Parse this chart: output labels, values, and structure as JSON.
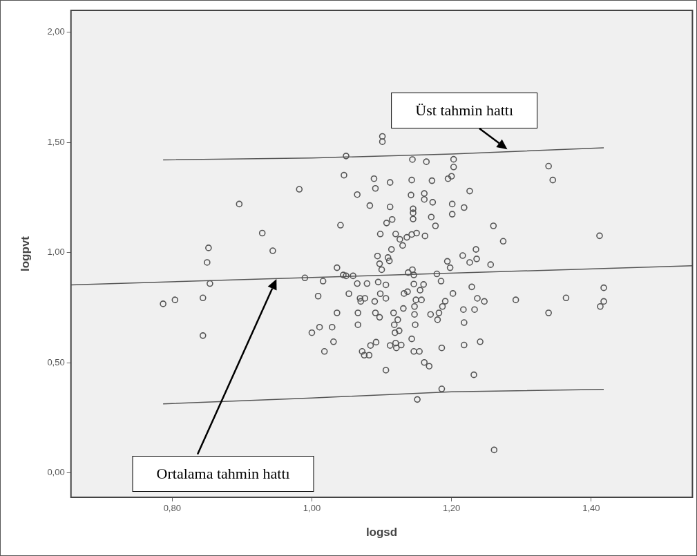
{
  "chart_data": {
    "type": "scatter",
    "xlabel": "logsd",
    "ylabel": "logpvt",
    "xlim": [
      0.655,
      1.545
    ],
    "ylim": [
      -0.11,
      2.1
    ],
    "xticks": [
      {
        "value": 0.8,
        "label": "0,80"
      },
      {
        "value": 1.0,
        "label": "1,00"
      },
      {
        "value": 1.2,
        "label": "1,20"
      },
      {
        "value": 1.4,
        "label": "1,40"
      }
    ],
    "yticks": [
      {
        "value": 0,
        "label": "0,00"
      },
      {
        "value": 0.5,
        "label": "0,50"
      },
      {
        "value": 1.0,
        "label": "1,00"
      },
      {
        "value": 1.5,
        "label": "1,50"
      },
      {
        "value": 2.0,
        "label": "2,00"
      }
    ],
    "grid": false,
    "legend": false,
    "marker": "circle",
    "series": [
      {
        "color": "#555555",
        "x": [
          0.787,
          0.804,
          0.844,
          0.844,
          0.852,
          0.85,
          0.854,
          0.896,
          0.929,
          0.944,
          0.982,
          0.99,
          1.0,
          1.009,
          1.011,
          1.016,
          1.018,
          1.029,
          1.031,
          1.036,
          1.036,
          1.041,
          1.045,
          1.046,
          1.049,
          1.049,
          1.053,
          1.059,
          1.065,
          1.065,
          1.066,
          1.066,
          1.069,
          1.07,
          1.072,
          1.075,
          1.076,
          1.079,
          1.082,
          1.083,
          1.084,
          1.089,
          1.09,
          1.091,
          1.091,
          1.092,
          1.094,
          1.095,
          1.097,
          1.098,
          1.098,
          1.097,
          1.1,
          1.101,
          1.101,
          1.106,
          1.106,
          1.106,
          1.107,
          1.109,
          1.111,
          1.112,
          1.112,
          1.114,
          1.112,
          1.115,
          1.117,
          1.118,
          1.119,
          1.12,
          1.12,
          1.121,
          1.123,
          1.125,
          1.126,
          1.128,
          1.13,
          1.131,
          1.132,
          1.136,
          1.137,
          1.138,
          1.142,
          1.143,
          1.143,
          1.143,
          1.144,
          1.144,
          1.145,
          1.145,
          1.145,
          1.146,
          1.146,
          1.147,
          1.147,
          1.148,
          1.149,
          1.146,
          1.15,
          1.151,
          1.154,
          1.155,
          1.157,
          1.16,
          1.161,
          1.161,
          1.161,
          1.162,
          1.164,
          1.168,
          1.17,
          1.171,
          1.172,
          1.173,
          1.177,
          1.179,
          1.18,
          1.182,
          1.185,
          1.186,
          1.186,
          1.187,
          1.191,
          1.194,
          1.195,
          1.198,
          1.2,
          1.201,
          1.201,
          1.202,
          1.203,
          1.203,
          1.216,
          1.217,
          1.218,
          1.218,
          1.218,
          1.226,
          1.226,
          1.229,
          1.232,
          1.233,
          1.235,
          1.236,
          1.237,
          1.241,
          1.247,
          1.256,
          1.26,
          1.261,
          1.274,
          1.292,
          1.339,
          1.345,
          1.339,
          1.364,
          1.412,
          1.418,
          1.418,
          1.413
        ],
        "values": [
          0.768,
          0.786,
          0.795,
          0.624,
          1.022,
          0.956,
          0.86,
          1.221,
          1.089,
          1.009,
          1.288,
          0.886,
          0.637,
          0.803,
          0.662,
          0.871,
          0.552,
          0.662,
          0.596,
          0.727,
          0.932,
          1.125,
          0.899,
          1.352,
          1.439,
          0.895,
          0.814,
          0.895,
          1.264,
          0.86,
          0.727,
          0.673,
          0.793,
          0.779,
          0.552,
          0.535,
          0.793,
          0.86,
          0.535,
          1.214,
          0.579,
          1.336,
          0.779,
          1.292,
          0.727,
          0.594,
          0.985,
          0.867,
          0.707,
          1.085,
          0.814,
          0.95,
          0.923,
          1.528,
          1.504,
          0.854,
          0.467,
          0.793,
          1.135,
          0.978,
          0.963,
          1.319,
          1.208,
          1.015,
          0.579,
          1.151,
          0.727,
          0.673,
          0.637,
          1.085,
          0.59,
          0.568,
          0.696,
          0.646,
          1.061,
          0.581,
          1.033,
          0.747,
          0.815,
          1.07,
          0.823,
          0.91,
          1.262,
          1.083,
          1.33,
          0.609,
          1.423,
          0.923,
          1.199,
          1.181,
          1.153,
          0.899,
          0.858,
          0.72,
          0.756,
          0.673,
          0.786,
          0.552,
          1.089,
          0.334,
          0.552,
          0.83,
          0.786,
          0.856,
          0.502,
          1.269,
          1.242,
          1.076,
          1.413,
          0.485,
          0.72,
          1.162,
          1.327,
          1.229,
          1.122,
          0.904,
          0.696,
          0.727,
          0.871,
          0.568,
          0.382,
          0.756,
          0.78,
          0.961,
          1.336,
          0.932,
          1.347,
          1.221,
          1.175,
          0.815,
          1.424,
          1.389,
          0.987,
          0.742,
          0.683,
          1.205,
          0.581,
          0.956,
          1.28,
          0.845,
          0.446,
          0.742,
          1.015,
          0.972,
          0.793,
          0.596,
          0.779,
          0.946,
          1.122,
          0.105,
          1.052,
          0.786,
          1.393,
          1.33,
          0.727,
          0.795,
          1.077,
          0.841,
          0.779,
          0.756
        ]
      },
      {
        "type": "line",
        "color": "#555555",
        "marker": "none",
        "x": [
          0.655,
          1.545
        ],
        "values": [
          0.854,
          0.941
        ]
      },
      {
        "type": "line",
        "color": "#555555",
        "marker": "none",
        "x": [
          0.787,
          1.0,
          1.2,
          1.418
        ],
        "values": [
          1.421,
          1.43,
          1.448,
          1.476
        ]
      },
      {
        "type": "line",
        "color": "#555555",
        "marker": "none",
        "x": [
          0.787,
          1.0,
          1.2,
          1.418
        ],
        "values": [
          0.314,
          0.341,
          0.369,
          0.38
        ]
      }
    ],
    "annotations": [
      "Üst tahmin hattı",
      "Ortalama tahmin hattı"
    ]
  }
}
